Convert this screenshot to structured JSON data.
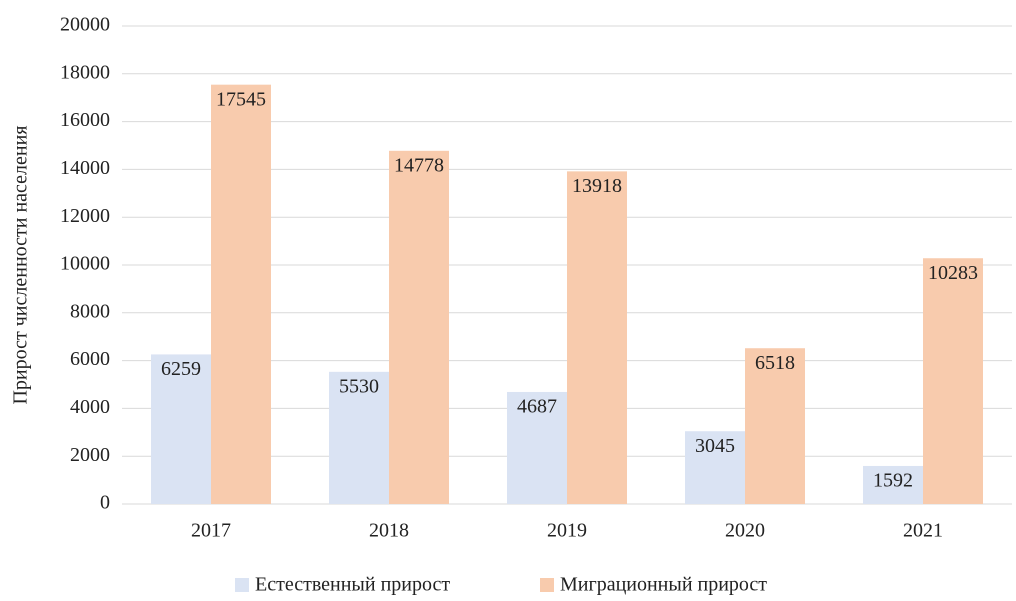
{
  "chart_data": {
    "type": "bar",
    "y_axis_label": "Прирост численности населения",
    "categories": [
      "2017",
      "2018",
      "2019",
      "2020",
      "2021"
    ],
    "series": [
      {
        "name": "Естественный прирост",
        "color": "#dae3f3",
        "values": [
          6259,
          5530,
          4687,
          3045,
          1592
        ]
      },
      {
        "name": "Миграционный прирост",
        "color": "#f8cbad",
        "values": [
          17545,
          14778,
          13918,
          6518,
          10283
        ]
      }
    ],
    "ylim": [
      0,
      20000
    ],
    "yticks": [
      0,
      2000,
      4000,
      6000,
      8000,
      10000,
      12000,
      14000,
      16000,
      18000,
      20000
    ],
    "grid": true,
    "legend": "bottom"
  }
}
